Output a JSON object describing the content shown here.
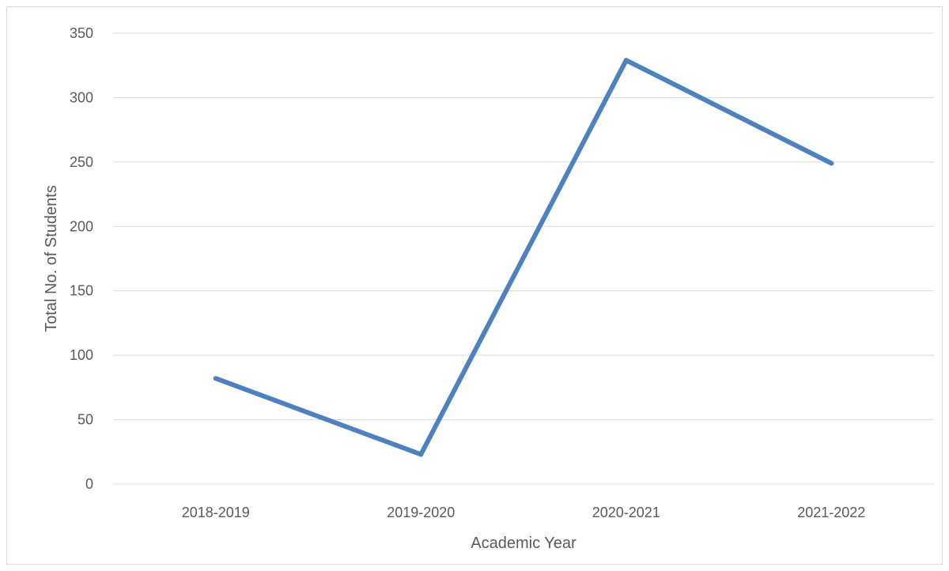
{
  "chart_data": {
    "type": "line",
    "categories": [
      "2018-2019",
      "2019-2020",
      "2020-2021",
      "2021-2022"
    ],
    "series": [
      {
        "values": [
          82,
          23,
          329,
          249
        ]
      }
    ],
    "xlabel": "Academic Year",
    "ylabel": "Total No. of Students",
    "ylim": [
      0,
      350
    ],
    "yticks": [
      0,
      50,
      100,
      150,
      200,
      250,
      300,
      350
    ],
    "grid": "horizontal",
    "legend": "none",
    "colors": {
      "series": "#4e81bd",
      "grid": "#d9d9d9",
      "text": "#595959"
    }
  }
}
